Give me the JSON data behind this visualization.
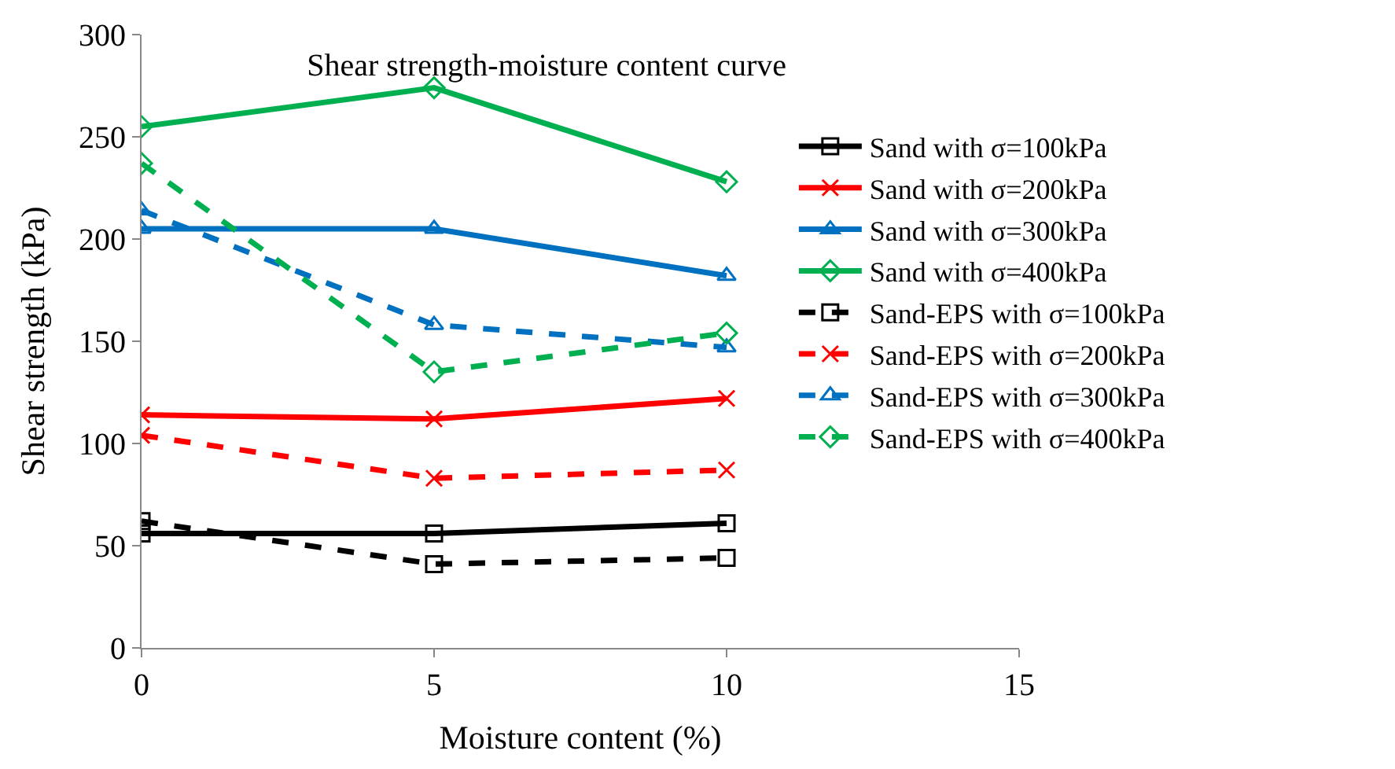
{
  "chart_data": {
    "type": "line",
    "title": "Shear strength-moisture content curve",
    "xlabel": "Moisture content (%)",
    "ylabel": "Shear strength (kPa)",
    "x": [
      0,
      5,
      10
    ],
    "xlim": [
      0,
      15
    ],
    "xticks": [
      0,
      5,
      10,
      15
    ],
    "ylim": [
      0,
      300
    ],
    "yticks": [
      0,
      50,
      100,
      150,
      200,
      250,
      300
    ],
    "legend": "right",
    "series": [
      {
        "name": "Sand with σ=100kPa",
        "color": "#000000",
        "marker": "square",
        "line_style": "solid",
        "values": [
          56,
          56,
          61
        ]
      },
      {
        "name": "Sand with σ=200kPa",
        "color": "#ff0000",
        "marker": "cross",
        "line_style": "solid",
        "values": [
          114,
          112,
          122
        ]
      },
      {
        "name": "Sand with σ=300kPa",
        "color": "#0070c0",
        "marker": "triangle",
        "line_style": "solid",
        "values": [
          205,
          205,
          182
        ]
      },
      {
        "name": "Sand with σ=400kPa",
        "color": "#00b050",
        "marker": "diamond",
        "line_style": "solid",
        "values": [
          255,
          274,
          228
        ]
      },
      {
        "name": "Sand-EPS with σ=100kPa",
        "color": "#000000",
        "marker": "square",
        "line_style": "dashed",
        "values": [
          62,
          41,
          44
        ]
      },
      {
        "name": "Sand-EPS with σ=200kPa",
        "color": "#ff0000",
        "marker": "cross",
        "line_style": "dashed",
        "values": [
          104,
          83,
          87
        ]
      },
      {
        "name": "Sand-EPS with σ=300kPa",
        "color": "#0070c0",
        "marker": "triangle",
        "line_style": "dashed",
        "values": [
          214,
          158,
          147
        ]
      },
      {
        "name": "Sand-EPS with σ=400kPa",
        "color": "#00b050",
        "marker": "diamond",
        "line_style": "dashed",
        "values": [
          237,
          135,
          154
        ]
      }
    ]
  }
}
